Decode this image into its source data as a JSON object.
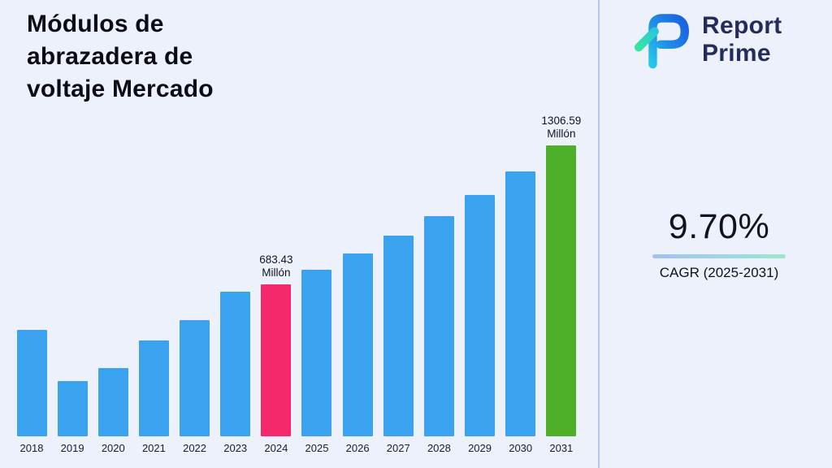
{
  "header": {
    "title_lines": [
      "Módulos de",
      "abrazadera de",
      "voltaje Mercado"
    ]
  },
  "logo": {
    "name_line1": "Report",
    "name_line2": "Prime"
  },
  "cagr": {
    "value": "9.70%",
    "label": "CAGR (2025-2031)"
  },
  "colors": {
    "background": "#edf1fb",
    "bar_default": "#3aa2ee",
    "bar_highlight_2024": "#f5286b",
    "bar_highlight_2031": "#4db028",
    "divider": "#b9c8ea",
    "logo_navy": "#232c5c"
  },
  "chart_data": {
    "type": "bar",
    "title": "Módulos de abrazadera de voltaje Mercado",
    "categories": [
      "2018",
      "2019",
      "2020",
      "2021",
      "2022",
      "2023",
      "2024",
      "2025",
      "2026",
      "2027",
      "2028",
      "2029",
      "2030",
      "2031"
    ],
    "values": [
      478.7,
      246.9,
      307.1,
      430.5,
      520.9,
      650.3,
      683.43,
      749.72,
      822.45,
      902.23,
      989.74,
      1085.75,
      1191.07,
      1306.59
    ],
    "unit": "Millón",
    "ylim": [
      0,
      1306.59
    ],
    "grid": false,
    "legend": false,
    "bar_colors": {
      "default": "#3aa2ee",
      "2024": "#f5286b",
      "2031": "#4db028"
    },
    "annotations": [
      {
        "category": "2024",
        "value_label": "683.43",
        "unit_label": "Millón"
      },
      {
        "category": "2031",
        "value_label": "1306.59",
        "unit_label": "Millón"
      }
    ]
  }
}
